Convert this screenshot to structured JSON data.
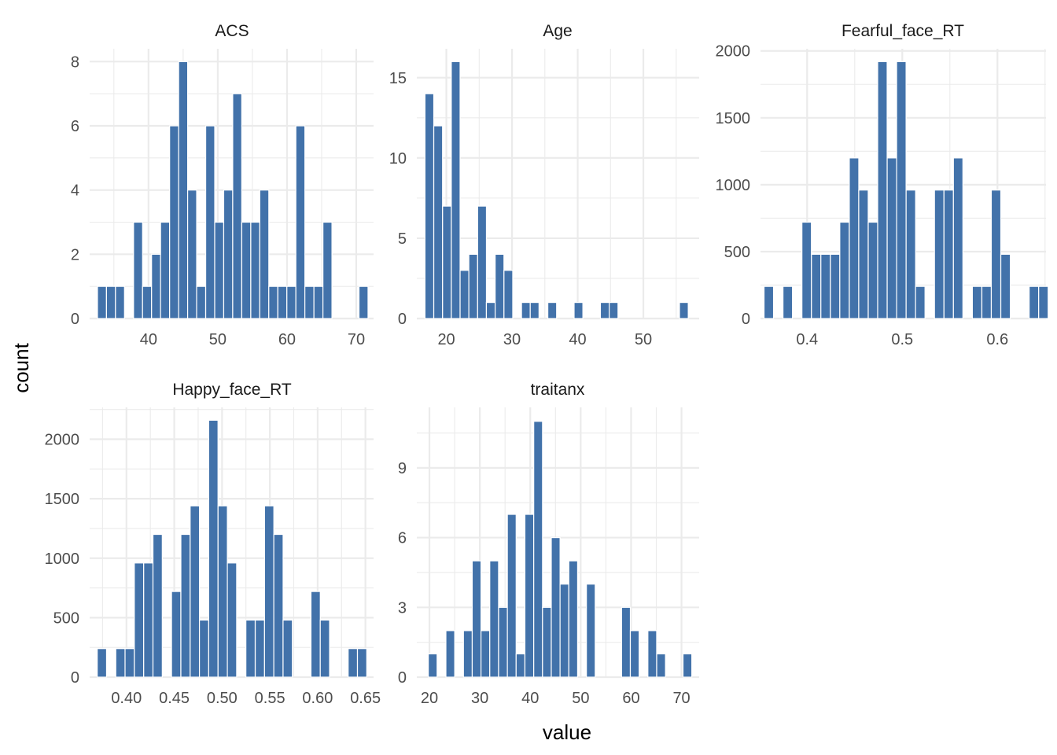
{
  "chart_data": {
    "type": "histogram",
    "xlabel": "value",
    "ylabel": "count",
    "bar_color": "#4272aa",
    "grid": true,
    "panels": [
      {
        "title": "ACS",
        "xlim": [
          31.5,
          72.5
        ],
        "ylim": [
          0,
          8.4
        ],
        "x_ticks": [
          40,
          50,
          60,
          70
        ],
        "x_tick_labels": [
          "40",
          "50",
          "60",
          "70"
        ],
        "y_ticks": [
          0,
          2,
          4,
          6,
          8
        ],
        "y_tick_labels": [
          "0",
          "2",
          "4",
          "6",
          "8"
        ],
        "bin_width": 1.302,
        "bins": [
          [
            33.28,
            1
          ],
          [
            34.58,
            1
          ],
          [
            35.88,
            1
          ],
          [
            38.49,
            3
          ],
          [
            39.79,
            1
          ],
          [
            41.09,
            2
          ],
          [
            42.39,
            3
          ],
          [
            43.7,
            6
          ],
          [
            45.0,
            8
          ],
          [
            46.3,
            4
          ],
          [
            47.6,
            1
          ],
          [
            48.91,
            6
          ],
          [
            50.21,
            3
          ],
          [
            51.51,
            4
          ],
          [
            52.81,
            7
          ],
          [
            54.12,
            3
          ],
          [
            55.42,
            3
          ],
          [
            56.72,
            4
          ],
          [
            58.02,
            1
          ],
          [
            59.33,
            1
          ],
          [
            60.63,
            1
          ],
          [
            61.93,
            6
          ],
          [
            63.23,
            1
          ],
          [
            64.54,
            1
          ],
          [
            65.84,
            3
          ],
          [
            71.05,
            1
          ]
        ]
      },
      {
        "title": "Age",
        "xlim": [
          15.5,
          58.5
        ],
        "ylim": [
          0,
          16.8
        ],
        "x_ticks": [
          20,
          30,
          40,
          50
        ],
        "x_tick_labels": [
          "20",
          "30",
          "40",
          "50"
        ],
        "y_ticks": [
          0,
          5,
          10,
          15
        ],
        "y_tick_labels": [
          "0",
          "5",
          "10",
          "15"
        ],
        "bin_width": 1.336,
        "bins": [
          [
            17.41,
            14
          ],
          [
            18.75,
            12
          ],
          [
            20.09,
            7
          ],
          [
            21.42,
            16
          ],
          [
            22.76,
            3
          ],
          [
            24.09,
            4
          ],
          [
            25.43,
            7
          ],
          [
            26.76,
            1
          ],
          [
            28.1,
            4
          ],
          [
            29.44,
            3
          ],
          [
            32.11,
            1
          ],
          [
            33.44,
            1
          ],
          [
            36.12,
            1
          ],
          [
            40.12,
            1
          ],
          [
            44.13,
            1
          ],
          [
            45.47,
            1
          ],
          [
            56.17,
            1
          ]
        ]
      },
      {
        "title": "Fearful_face_RT",
        "xlim": [
          0.351,
          0.651
        ],
        "ylim": [
          0,
          2016
        ],
        "x_ticks": [
          0.4,
          0.5,
          0.6
        ],
        "x_tick_labels": [
          "0.4",
          "0.5",
          "0.6"
        ],
        "y_ticks": [
          0,
          500,
          1000,
          1500,
          2000
        ],
        "y_tick_labels": [
          "0",
          "500",
          "1000",
          "1500",
          "2000"
        ],
        "bin_width": 0.00995,
        "bins": [
          [
            0.3597,
            240
          ],
          [
            0.3796,
            240
          ],
          [
            0.3995,
            720
          ],
          [
            0.4095,
            480
          ],
          [
            0.4194,
            480
          ],
          [
            0.4294,
            480
          ],
          [
            0.4393,
            720
          ],
          [
            0.4493,
            1200
          ],
          [
            0.4592,
            960
          ],
          [
            0.4692,
            720
          ],
          [
            0.4791,
            1920
          ],
          [
            0.4891,
            1200
          ],
          [
            0.499,
            1920
          ],
          [
            0.509,
            960
          ],
          [
            0.5189,
            240
          ],
          [
            0.5388,
            960
          ],
          [
            0.5488,
            960
          ],
          [
            0.5587,
            1200
          ],
          [
            0.5786,
            240
          ],
          [
            0.5886,
            240
          ],
          [
            0.5985,
            960
          ],
          [
            0.6085,
            480
          ],
          [
            0.6383,
            240
          ],
          [
            0.6483,
            240
          ]
        ]
      },
      {
        "title": "Happy_face_RT",
        "xlim": [
          0.3615,
          0.6585
        ],
        "ylim": [
          0,
          2268
        ],
        "x_ticks": [
          0.4,
          0.45,
          0.5,
          0.55,
          0.6,
          0.65
        ],
        "x_tick_labels": [
          "0.40",
          "0.45",
          "0.50",
          "0.55",
          "0.60",
          "0.65"
        ],
        "y_ticks": [
          0,
          500,
          1000,
          1500,
          2000
        ],
        "y_tick_labels": [
          "0",
          "500",
          "1000",
          "1500",
          "2000"
        ],
        "bin_width": 0.00973,
        "bins": [
          [
            0.3743,
            240
          ],
          [
            0.3937,
            240
          ],
          [
            0.4034,
            240
          ],
          [
            0.4131,
            960
          ],
          [
            0.4229,
            960
          ],
          [
            0.4326,
            1200
          ],
          [
            0.452,
            720
          ],
          [
            0.4618,
            1200
          ],
          [
            0.4715,
            1440
          ],
          [
            0.4812,
            480
          ],
          [
            0.4909,
            2160
          ],
          [
            0.5007,
            1440
          ],
          [
            0.5104,
            960
          ],
          [
            0.5298,
            480
          ],
          [
            0.5396,
            480
          ],
          [
            0.5493,
            1440
          ],
          [
            0.559,
            1200
          ],
          [
            0.5687,
            480
          ],
          [
            0.5979,
            720
          ],
          [
            0.6076,
            480
          ],
          [
            0.6368,
            240
          ],
          [
            0.6465,
            240
          ]
        ]
      },
      {
        "title": "traitanx",
        "xlim": [
          17.5,
          73.5
        ],
        "ylim": [
          0,
          11.6
        ],
        "x_ticks": [
          20,
          30,
          40,
          50,
          60,
          70
        ],
        "x_tick_labels": [
          "20",
          "30",
          "40",
          "50",
          "60",
          "70"
        ],
        "y_ticks": [
          0,
          3,
          6,
          9
        ],
        "y_tick_labels": [
          "0",
          "3",
          "6",
          "9"
        ],
        "bin_width": 1.742,
        "bins": [
          [
            20.65,
            1
          ],
          [
            24.14,
            2
          ],
          [
            27.62,
            2
          ],
          [
            29.36,
            5
          ],
          [
            31.1,
            2
          ],
          [
            32.84,
            5
          ],
          [
            34.59,
            3
          ],
          [
            36.33,
            7
          ],
          [
            38.07,
            1
          ],
          [
            39.81,
            7
          ],
          [
            41.56,
            11
          ],
          [
            43.3,
            3
          ],
          [
            45.04,
            6
          ],
          [
            46.78,
            4
          ],
          [
            48.52,
            5
          ],
          [
            52.01,
            4
          ],
          [
            58.98,
            3
          ],
          [
            60.72,
            2
          ],
          [
            64.2,
            2
          ],
          [
            65.95,
            1
          ],
          [
            71.17,
            1
          ]
        ]
      }
    ]
  }
}
